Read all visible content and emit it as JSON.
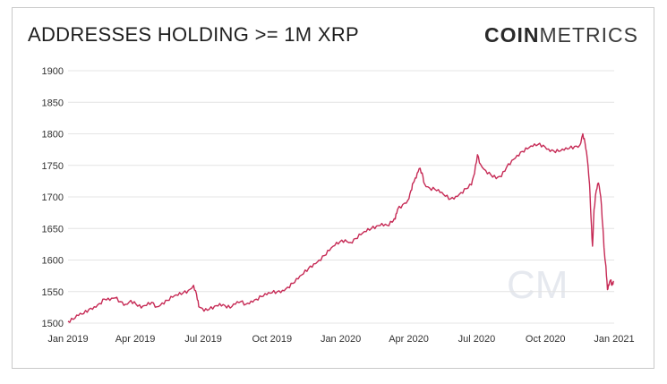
{
  "header": {
    "title": "ADDRESSES HOLDING >= 1M XRP",
    "logo_bold": "COIN",
    "logo_light": "METRICS",
    "watermark": "CM"
  },
  "colors": {
    "line": "#c62a55",
    "grid": "#e4e4e4"
  },
  "chart_data": {
    "type": "line",
    "title": "ADDRESSES HOLDING >= 1M XRP",
    "xlabel": "",
    "ylabel": "",
    "grid": true,
    "ylim": [
      1500,
      1900
    ],
    "y_ticks": [
      1500,
      1550,
      1600,
      1650,
      1700,
      1750,
      1800,
      1850,
      1900
    ],
    "x_ticks": [
      {
        "date": "2019-01-01",
        "label": "Jan 2019"
      },
      {
        "date": "2019-04-01",
        "label": "Apr 2019"
      },
      {
        "date": "2019-07-01",
        "label": "Jul 2019"
      },
      {
        "date": "2019-10-01",
        "label": "Oct 2019"
      },
      {
        "date": "2020-01-01",
        "label": "Jan 2020"
      },
      {
        "date": "2020-04-01",
        "label": "Apr 2020"
      },
      {
        "date": "2020-07-01",
        "label": "Jul 2020"
      },
      {
        "date": "2020-10-01",
        "label": "Oct 2020"
      },
      {
        "date": "2021-01-01",
        "label": "Jan 2021"
      }
    ],
    "series": [
      {
        "points": [
          [
            "2019-01-01",
            1503
          ],
          [
            "2019-01-08",
            1506
          ],
          [
            "2019-01-15",
            1512
          ],
          [
            "2019-01-22",
            1515
          ],
          [
            "2019-01-29",
            1522
          ],
          [
            "2019-02-05",
            1526
          ],
          [
            "2019-02-12",
            1531
          ],
          [
            "2019-02-19",
            1538
          ],
          [
            "2019-02-26",
            1536
          ],
          [
            "2019-03-05",
            1540
          ],
          [
            "2019-03-12",
            1534
          ],
          [
            "2019-03-19",
            1530
          ],
          [
            "2019-03-26",
            1536
          ],
          [
            "2019-04-02",
            1530
          ],
          [
            "2019-04-09",
            1524
          ],
          [
            "2019-04-16",
            1528
          ],
          [
            "2019-04-23",
            1533
          ],
          [
            "2019-04-30",
            1526
          ],
          [
            "2019-05-07",
            1532
          ],
          [
            "2019-05-14",
            1536
          ],
          [
            "2019-05-21",
            1541
          ],
          [
            "2019-05-28",
            1544
          ],
          [
            "2019-06-04",
            1548
          ],
          [
            "2019-06-11",
            1552
          ],
          [
            "2019-06-18",
            1560
          ],
          [
            "2019-06-22",
            1546
          ],
          [
            "2019-06-25",
            1526
          ],
          [
            "2019-07-02",
            1519
          ],
          [
            "2019-07-09",
            1522
          ],
          [
            "2019-07-16",
            1527
          ],
          [
            "2019-07-23",
            1531
          ],
          [
            "2019-07-30",
            1528
          ],
          [
            "2019-08-06",
            1524
          ],
          [
            "2019-08-13",
            1530
          ],
          [
            "2019-08-20",
            1534
          ],
          [
            "2019-08-27",
            1530
          ],
          [
            "2019-09-03",
            1535
          ],
          [
            "2019-09-10",
            1538
          ],
          [
            "2019-09-17",
            1542
          ],
          [
            "2019-09-24",
            1545
          ],
          [
            "2019-10-01",
            1548
          ],
          [
            "2019-10-08",
            1550
          ],
          [
            "2019-10-15",
            1552
          ],
          [
            "2019-10-22",
            1557
          ],
          [
            "2019-10-29",
            1563
          ],
          [
            "2019-11-05",
            1570
          ],
          [
            "2019-11-12",
            1578
          ],
          [
            "2019-11-19",
            1587
          ],
          [
            "2019-11-26",
            1594
          ],
          [
            "2019-12-03",
            1600
          ],
          [
            "2019-12-10",
            1607
          ],
          [
            "2019-12-17",
            1615
          ],
          [
            "2019-12-24",
            1623
          ],
          [
            "2019-12-31",
            1629
          ],
          [
            "2020-01-07",
            1632
          ],
          [
            "2020-01-14",
            1628
          ],
          [
            "2020-01-21",
            1634
          ],
          [
            "2020-01-28",
            1640
          ],
          [
            "2020-02-04",
            1645
          ],
          [
            "2020-02-11",
            1650
          ],
          [
            "2020-02-18",
            1654
          ],
          [
            "2020-02-25",
            1658
          ],
          [
            "2020-03-03",
            1655
          ],
          [
            "2020-03-10",
            1660
          ],
          [
            "2020-03-14",
            1665
          ],
          [
            "2020-03-17",
            1680
          ],
          [
            "2020-03-24",
            1688
          ],
          [
            "2020-03-31",
            1695
          ],
          [
            "2020-04-04",
            1710
          ],
          [
            "2020-04-07",
            1722
          ],
          [
            "2020-04-11",
            1730
          ],
          [
            "2020-04-15",
            1745
          ],
          [
            "2020-04-19",
            1738
          ],
          [
            "2020-04-22",
            1721
          ],
          [
            "2020-04-29",
            1714
          ],
          [
            "2020-05-06",
            1712
          ],
          [
            "2020-05-13",
            1707
          ],
          [
            "2020-05-20",
            1701
          ],
          [
            "2020-05-27",
            1697
          ],
          [
            "2020-06-03",
            1701
          ],
          [
            "2020-06-10",
            1707
          ],
          [
            "2020-06-17",
            1713
          ],
          [
            "2020-06-24",
            1719
          ],
          [
            "2020-06-28",
            1737
          ],
          [
            "2020-07-02",
            1767
          ],
          [
            "2020-07-06",
            1752
          ],
          [
            "2020-07-13",
            1742
          ],
          [
            "2020-07-20",
            1735
          ],
          [
            "2020-07-27",
            1729
          ],
          [
            "2020-08-03",
            1732
          ],
          [
            "2020-08-10",
            1747
          ],
          [
            "2020-08-17",
            1758
          ],
          [
            "2020-08-24",
            1766
          ],
          [
            "2020-08-31",
            1772
          ],
          [
            "2020-09-07",
            1776
          ],
          [
            "2020-09-14",
            1780
          ],
          [
            "2020-09-21",
            1783
          ],
          [
            "2020-09-28",
            1782
          ],
          [
            "2020-10-05",
            1776
          ],
          [
            "2020-10-12",
            1773
          ],
          [
            "2020-10-19",
            1772
          ],
          [
            "2020-10-26",
            1774
          ],
          [
            "2020-11-02",
            1777
          ],
          [
            "2020-11-09",
            1780
          ],
          [
            "2020-11-16",
            1782
          ],
          [
            "2020-11-20",
            1800
          ],
          [
            "2020-11-23",
            1785
          ],
          [
            "2020-11-26",
            1760
          ],
          [
            "2020-11-29",
            1720
          ],
          [
            "2020-12-01",
            1668
          ],
          [
            "2020-12-03",
            1622
          ],
          [
            "2020-12-05",
            1680
          ],
          [
            "2020-12-08",
            1710
          ],
          [
            "2020-12-11",
            1722
          ],
          [
            "2020-12-14",
            1700
          ],
          [
            "2020-12-17",
            1650
          ],
          [
            "2020-12-19",
            1610
          ],
          [
            "2020-12-21",
            1590
          ],
          [
            "2020-12-23",
            1553
          ],
          [
            "2020-12-25",
            1560
          ],
          [
            "2020-12-27",
            1568
          ],
          [
            "2020-12-29",
            1560
          ],
          [
            "2020-12-31",
            1567
          ]
        ]
      }
    ]
  }
}
